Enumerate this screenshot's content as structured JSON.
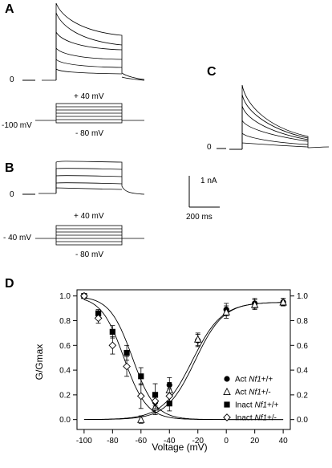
{
  "panels": {
    "a": "A",
    "b": "B",
    "c": "C",
    "d": "D"
  },
  "panel_a": {
    "zero": "0",
    "holding": "-100 mV",
    "top_step": "+ 40 mV",
    "bottom_step": "- 80 mV"
  },
  "panel_b": {
    "zero": "0",
    "holding": "- 40 mV",
    "top_step": "+ 40 mV",
    "bottom_step": "- 80 mV"
  },
  "panel_c": {
    "zero": "0"
  },
  "scale_bar": {
    "current": "1 nA",
    "time": "200 ms"
  },
  "chart_data": {
    "type": "scatter",
    "xlabel": "Voltage (mV)",
    "ylabel": "G/Gmax",
    "xlim": [
      -105,
      45
    ],
    "ylim": [
      -0.08,
      1.05
    ],
    "x_ticks": [
      -100,
      -80,
      -60,
      -40,
      -20,
      0,
      20,
      40
    ],
    "y_ticks": [
      0.0,
      0.2,
      0.4,
      0.6,
      0.8,
      1.0
    ],
    "y_tick_labels": [
      "0.0",
      "0.2",
      "0.4",
      "0.6",
      "0.8",
      "1.0"
    ],
    "x_tick_labels": [
      "-100",
      "-80",
      "-60",
      "-40",
      "-20",
      "0",
      "20",
      "40"
    ],
    "legend_position": "lower-right",
    "series": [
      {
        "name": "Act Nf1+/+",
        "legend_prefix": "Act ",
        "legend_italic": "Nf1",
        "legend_suffix": "+/+",
        "marker": "filled-circle",
        "x": [
          -50,
          -40,
          -20,
          0,
          20,
          40
        ],
        "y": [
          0.14,
          0.28,
          0.64,
          0.89,
          0.94,
          0.95
        ],
        "err": [
          0.08,
          0.06,
          0.05,
          0.05,
          0.04,
          0.03
        ]
      },
      {
        "name": "Act Nf1+/-",
        "legend_prefix": "Act ",
        "legend_italic": "Nf1",
        "legend_suffix": "+/-",
        "marker": "open-triangle",
        "x": [
          -60,
          -50,
          -40,
          -20,
          0,
          20,
          40
        ],
        "y": [
          0.0,
          0.1,
          0.24,
          0.65,
          0.87,
          0.93,
          0.95
        ],
        "err": [
          0.03,
          0.06,
          0.06,
          0.05,
          0.05,
          0.04,
          0.03
        ]
      },
      {
        "name": "Inact Nf1+/+",
        "legend_prefix": "Inact ",
        "legend_italic": "Nf1",
        "legend_suffix": "+/+",
        "marker": "filled-square",
        "x": [
          -100,
          -90,
          -80,
          -70,
          -60,
          -50,
          -40
        ],
        "y": [
          1.0,
          0.86,
          0.71,
          0.54,
          0.35,
          0.2,
          0.13
        ],
        "err": [
          0.0,
          0.03,
          0.05,
          0.06,
          0.07,
          0.09,
          0.06
        ]
      },
      {
        "name": "Inact Nf1+/-",
        "legend_prefix": "Inact ",
        "legend_italic": "Nf1",
        "legend_suffix": "+/-",
        "marker": "open-diamond",
        "x": [
          -100,
          -90,
          -80,
          -70,
          -60,
          -50,
          -40
        ],
        "y": [
          1.0,
          0.82,
          0.6,
          0.43,
          0.19,
          0.15,
          0.19
        ],
        "err": [
          0.0,
          0.04,
          0.07,
          0.08,
          0.1,
          0.06,
          0.06
        ]
      }
    ],
    "fits": [
      {
        "kind": "activation",
        "v_half": -22,
        "slope": 10
      },
      {
        "kind": "activation",
        "v_half": -24,
        "slope": 10.5
      },
      {
        "kind": "inactivation",
        "v_half": -66,
        "slope": 8
      },
      {
        "kind": "inactivation",
        "v_half": -72,
        "slope": 8
      }
    ]
  }
}
